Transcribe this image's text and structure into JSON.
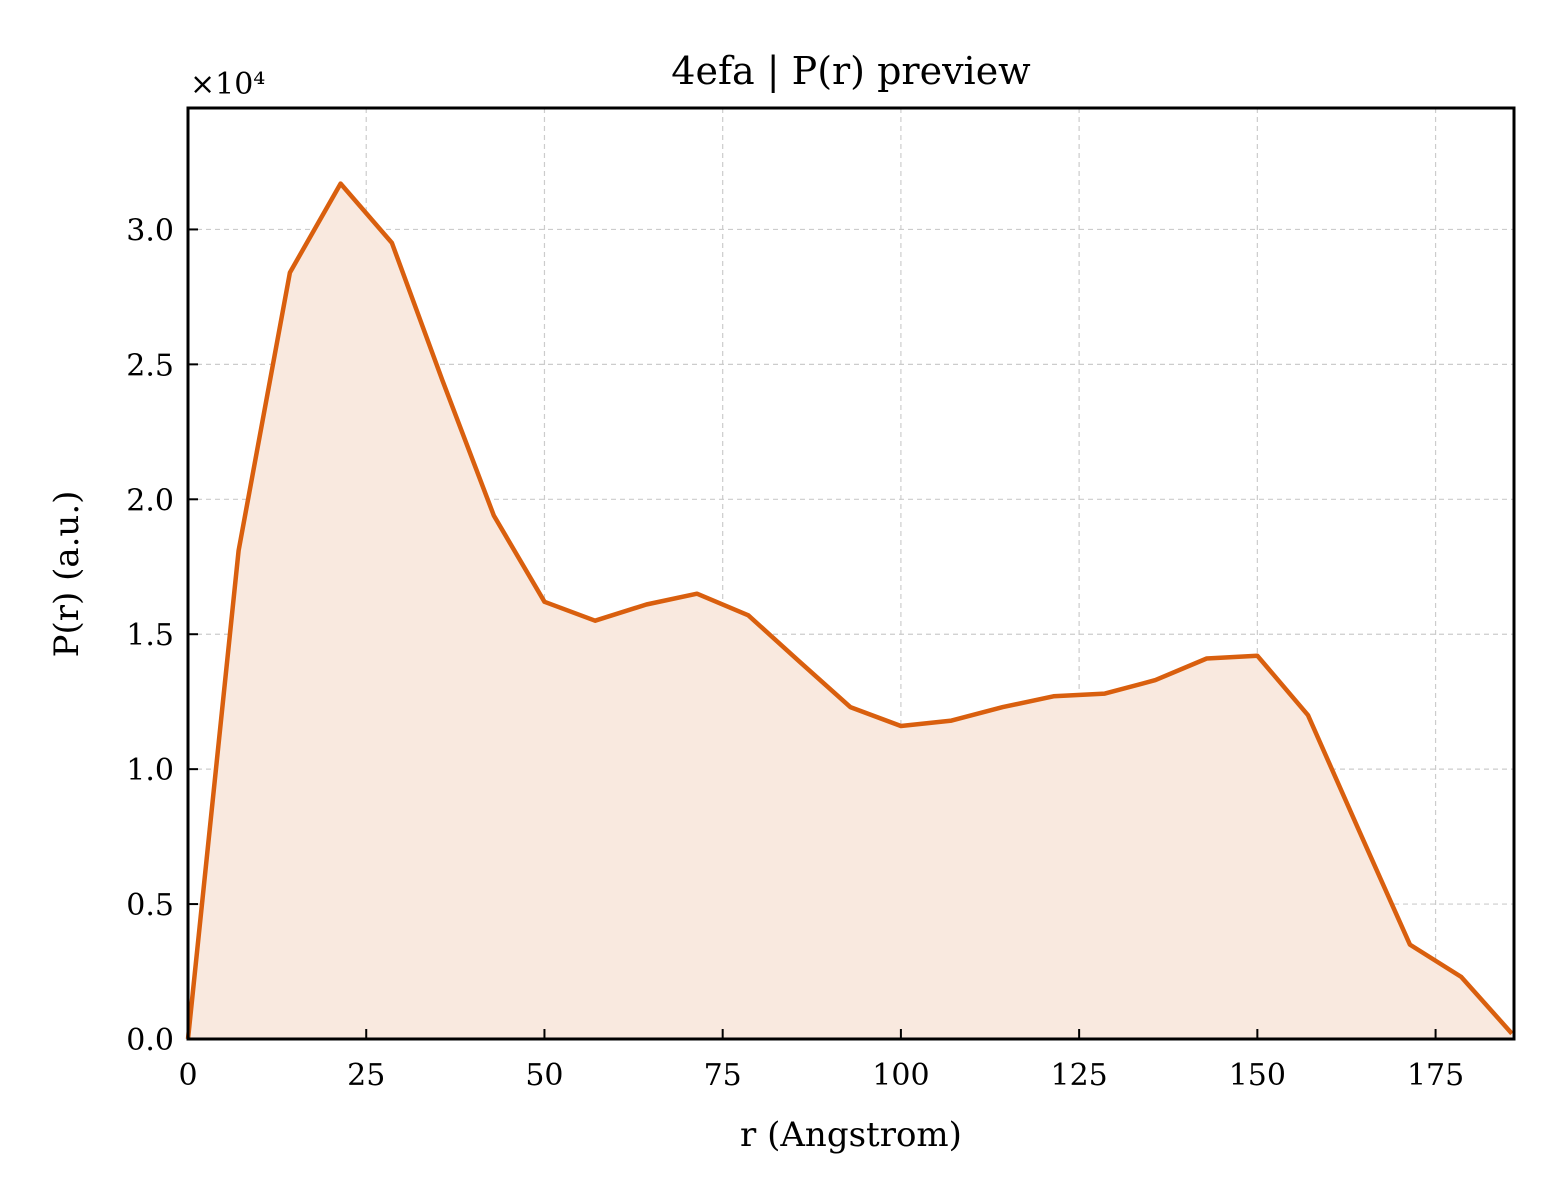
{
  "chart_data": {
    "type": "line",
    "title": "4efa | P(r) preview",
    "xlabel": "r (Angstrom)",
    "ylabel": "P(r) (a.u.)",
    "y_multiplier_label": "×10⁴",
    "xlim": [
      0,
      186
    ],
    "ylim": [
      0,
      3.45
    ],
    "x_ticks": [
      0,
      25,
      50,
      75,
      100,
      125,
      150,
      175
    ],
    "y_ticks": [
      0.0,
      0.5,
      1.0,
      1.5,
      2.0,
      2.5,
      3.0
    ],
    "y_tick_labels": [
      "0.0",
      "0.5",
      "1.0",
      "1.5",
      "2.0",
      "2.5",
      "3.0"
    ],
    "grid": true,
    "fill_under": true,
    "colors": {
      "line": "#d95f0e",
      "fill": "#f9e9df"
    },
    "series": [
      {
        "x": [
          0,
          7.1,
          14.3,
          21.4,
          28.6,
          35.7,
          42.9,
          50.0,
          57.1,
          64.3,
          71.4,
          78.6,
          85.7,
          92.9,
          100.0,
          107.1,
          114.3,
          121.4,
          128.6,
          135.7,
          142.9,
          150.0,
          157.1,
          164.3,
          171.4,
          178.6,
          185.7
        ],
        "y": [
          0.0,
          1.81,
          2.84,
          3.17,
          2.95,
          2.44,
          1.94,
          1.62,
          1.55,
          1.61,
          1.65,
          1.57,
          1.4,
          1.23,
          1.16,
          1.18,
          1.23,
          1.27,
          1.28,
          1.33,
          1.41,
          1.42,
          1.2,
          0.77,
          0.35,
          0.23,
          0.02
        ]
      }
    ]
  }
}
